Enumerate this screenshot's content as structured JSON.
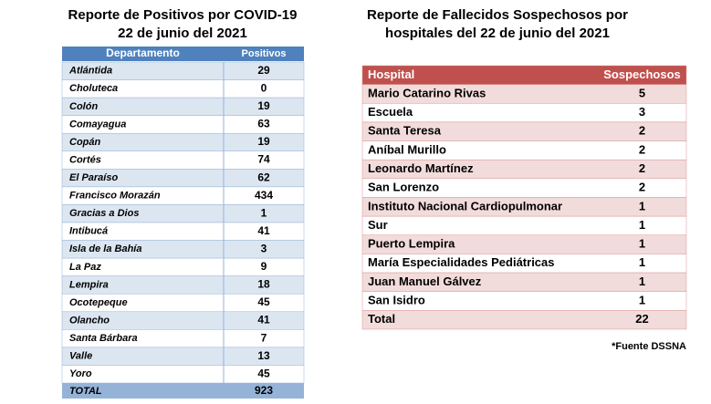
{
  "left": {
    "title": [
      "Reporte de Positivos por COVID-19",
      "22 de junio del 2021"
    ],
    "header": [
      "Departamento",
      "Positivos"
    ],
    "rows": [
      [
        "Atlántida",
        29
      ],
      [
        "Choluteca",
        0
      ],
      [
        "Colón",
        19
      ],
      [
        "Comayagua",
        63
      ],
      [
        "Copán",
        19
      ],
      [
        "Cortés",
        74
      ],
      [
        "El Paraíso",
        62
      ],
      [
        "Francisco Morazán",
        434
      ],
      [
        "Gracias a Dios",
        1
      ],
      [
        "Intibucá",
        41
      ],
      [
        "Isla de la Bahía",
        3
      ],
      [
        "La Paz",
        9
      ],
      [
        "Lempira",
        18
      ],
      [
        "Ocotepeque",
        45
      ],
      [
        "Olancho",
        41
      ],
      [
        "Santa Bárbara",
        7
      ],
      [
        "Valle",
        13
      ],
      [
        "Yoro",
        45
      ]
    ],
    "total": [
      "TOTAL",
      923
    ]
  },
  "right": {
    "title": [
      "Reporte de Fallecidos Sospechosos por",
      "hospitales del 22 de junio del 2021"
    ],
    "header": [
      "Hospital",
      "Sospechosos"
    ],
    "rows": [
      [
        "Mario Catarino Rivas",
        5
      ],
      [
        "Escuela",
        3
      ],
      [
        "Santa Teresa",
        2
      ],
      [
        "Aníbal Murillo",
        2
      ],
      [
        "Leonardo Martínez",
        2
      ],
      [
        "San Lorenzo",
        2
      ],
      [
        "Instituto Nacional Cardiopulmonar",
        1
      ],
      [
        "Sur",
        1
      ],
      [
        "Puerto Lempira",
        1
      ],
      [
        "María Especialidades Pediátricas",
        1
      ],
      [
        "Juan Manuel Gálvez",
        1
      ],
      [
        "San Isidro",
        1
      ]
    ],
    "total": [
      "Total",
      22
    ],
    "source": "*Fuente DSSNA"
  }
}
